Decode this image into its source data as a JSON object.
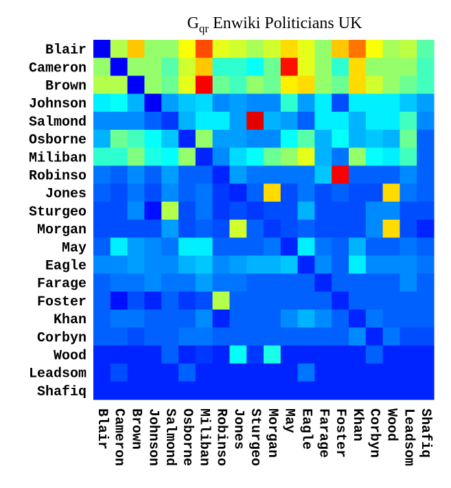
{
  "chart_data": {
    "type": "heatmap",
    "title_main": "G",
    "title_sub": "qr",
    "title_rest": " Enwiki Politicians UK",
    "rows": [
      "Blair",
      "Cameron",
      "Brown",
      "Johnson",
      "Salmond",
      "Osborne",
      "Miliban",
      "Robinso",
      "Jones",
      "Sturgeo",
      "Morgan",
      "May",
      "Eagle",
      "Farage",
      "Foster",
      "Khan",
      "Corbyn",
      "Wood",
      "Leadsom",
      "Shafiq"
    ],
    "columns": [
      "Blair",
      "Cameron",
      "Brown",
      "Johnson",
      "Salmond",
      "Osborne",
      "Miliban",
      "Robinso",
      "Jones",
      "Sturgeo",
      "Morgan",
      "May",
      "Eagle",
      "Farage",
      "Foster",
      "Khan",
      "Corbyn",
      "Wood",
      "Leadsom",
      "Shafiq"
    ],
    "value_range": [
      0,
      1
    ],
    "colormap": "jet",
    "grid": false,
    "values": [
      [
        0.12,
        0.55,
        0.68,
        0.52,
        0.52,
        0.62,
        0.8,
        0.6,
        0.58,
        0.54,
        0.58,
        0.66,
        0.6,
        0.52,
        0.68,
        0.76,
        0.62,
        0.54,
        0.56,
        0.46
      ],
      [
        0.52,
        0.12,
        0.52,
        0.52,
        0.46,
        0.58,
        0.68,
        0.42,
        0.42,
        0.38,
        0.48,
        0.86,
        0.6,
        0.52,
        0.42,
        0.66,
        0.52,
        0.52,
        0.52,
        0.44
      ],
      [
        0.55,
        0.55,
        0.12,
        0.52,
        0.48,
        0.6,
        0.88,
        0.48,
        0.44,
        0.52,
        0.48,
        0.64,
        0.66,
        0.52,
        0.48,
        0.66,
        0.58,
        0.52,
        0.48,
        0.44
      ],
      [
        0.36,
        0.38,
        0.3,
        0.12,
        0.28,
        0.32,
        0.34,
        0.26,
        0.28,
        0.26,
        0.26,
        0.42,
        0.28,
        0.36,
        0.2,
        0.36,
        0.36,
        0.36,
        0.32,
        0.28
      ],
      [
        0.26,
        0.26,
        0.26,
        0.22,
        0.18,
        0.3,
        0.36,
        0.36,
        0.28,
        0.9,
        0.3,
        0.28,
        0.22,
        0.36,
        0.36,
        0.3,
        0.36,
        0.36,
        0.44,
        0.26
      ],
      [
        0.3,
        0.48,
        0.44,
        0.38,
        0.32,
        0.16,
        0.52,
        0.28,
        0.28,
        0.26,
        0.26,
        0.38,
        0.46,
        0.3,
        0.38,
        0.3,
        0.32,
        0.3,
        0.48,
        0.22
      ],
      [
        0.42,
        0.42,
        0.5,
        0.4,
        0.38,
        0.52,
        0.16,
        0.26,
        0.34,
        0.38,
        0.48,
        0.52,
        0.6,
        0.3,
        0.24,
        0.52,
        0.38,
        0.36,
        0.44,
        0.22
      ],
      [
        0.24,
        0.22,
        0.26,
        0.22,
        0.28,
        0.22,
        0.22,
        0.16,
        0.28,
        0.24,
        0.24,
        0.24,
        0.24,
        0.32,
        0.88,
        0.22,
        0.22,
        0.22,
        0.26,
        0.22
      ],
      [
        0.22,
        0.2,
        0.24,
        0.2,
        0.26,
        0.22,
        0.24,
        0.18,
        0.16,
        0.22,
        0.66,
        0.2,
        0.24,
        0.2,
        0.22,
        0.2,
        0.2,
        0.66,
        0.24,
        0.22
      ],
      [
        0.2,
        0.2,
        0.26,
        0.14,
        0.55,
        0.2,
        0.24,
        0.18,
        0.2,
        0.18,
        0.2,
        0.2,
        0.3,
        0.2,
        0.2,
        0.2,
        0.26,
        0.26,
        0.2,
        0.2
      ],
      [
        0.2,
        0.2,
        0.2,
        0.2,
        0.28,
        0.2,
        0.22,
        0.2,
        0.58,
        0.22,
        0.18,
        0.2,
        0.22,
        0.2,
        0.2,
        0.2,
        0.26,
        0.66,
        0.2,
        0.16
      ],
      [
        0.22,
        0.36,
        0.28,
        0.26,
        0.24,
        0.36,
        0.36,
        0.22,
        0.22,
        0.22,
        0.24,
        0.16,
        0.36,
        0.24,
        0.22,
        0.3,
        0.22,
        0.22,
        0.24,
        0.22
      ],
      [
        0.26,
        0.26,
        0.28,
        0.26,
        0.26,
        0.3,
        0.32,
        0.26,
        0.28,
        0.3,
        0.3,
        0.32,
        0.16,
        0.26,
        0.22,
        0.36,
        0.26,
        0.26,
        0.26,
        0.24
      ],
      [
        0.22,
        0.24,
        0.24,
        0.26,
        0.24,
        0.24,
        0.28,
        0.24,
        0.24,
        0.22,
        0.22,
        0.22,
        0.22,
        0.16,
        0.22,
        0.22,
        0.22,
        0.22,
        0.26,
        0.22
      ],
      [
        0.22,
        0.14,
        0.2,
        0.16,
        0.22,
        0.18,
        0.2,
        0.55,
        0.22,
        0.22,
        0.22,
        0.22,
        0.22,
        0.22,
        0.16,
        0.22,
        0.22,
        0.22,
        0.22,
        0.22
      ],
      [
        0.22,
        0.24,
        0.24,
        0.22,
        0.22,
        0.22,
        0.26,
        0.16,
        0.22,
        0.22,
        0.22,
        0.26,
        0.3,
        0.26,
        0.22,
        0.16,
        0.24,
        0.22,
        0.22,
        0.22
      ],
      [
        0.22,
        0.22,
        0.2,
        0.22,
        0.22,
        0.24,
        0.24,
        0.22,
        0.22,
        0.22,
        0.22,
        0.22,
        0.22,
        0.22,
        0.22,
        0.26,
        0.16,
        0.24,
        0.2,
        0.2
      ],
      [
        0.16,
        0.16,
        0.16,
        0.16,
        0.22,
        0.16,
        0.18,
        0.16,
        0.38,
        0.18,
        0.4,
        0.16,
        0.16,
        0.16,
        0.16,
        0.16,
        0.22,
        0.16,
        0.16,
        0.16
      ],
      [
        0.16,
        0.2,
        0.16,
        0.16,
        0.16,
        0.22,
        0.16,
        0.16,
        0.16,
        0.16,
        0.16,
        0.16,
        0.24,
        0.16,
        0.16,
        0.16,
        0.16,
        0.16,
        0.16,
        0.16
      ],
      [
        0.16,
        0.16,
        0.16,
        0.16,
        0.16,
        0.16,
        0.16,
        0.16,
        0.16,
        0.16,
        0.16,
        0.16,
        0.16,
        0.16,
        0.16,
        0.16,
        0.16,
        0.16,
        0.16,
        0.16
      ]
    ]
  }
}
